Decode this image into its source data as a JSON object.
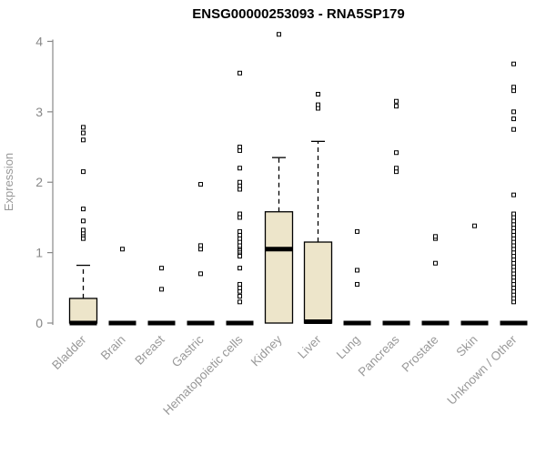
{
  "chart_data": {
    "type": "boxplot",
    "title": "ENSG00000253093 - RNA5SP179",
    "ylabel": "Expression",
    "ylim": [
      0,
      4.2
    ],
    "yticks": [
      0,
      1,
      2,
      3,
      4
    ],
    "grid": false,
    "legend": false,
    "box_fill": "#EDE5CA",
    "box_stroke": "#000000",
    "median_color": "#000000",
    "axis_color": "#888888",
    "label_color": "#999999",
    "title_color": "#000000",
    "outlier_marker": "open-square",
    "categories": [
      "Bladder",
      "Brain",
      "Breast",
      "Gastric",
      "Hematopoietic cells",
      "Kidney",
      "Liver",
      "Lung",
      "Pancreas",
      "Prostate",
      "Skin",
      "Unknown / Other"
    ],
    "boxes": [
      {
        "category": "Bladder",
        "q1": 0,
        "median": 0,
        "q3": 0.35,
        "whisker_low": 0,
        "whisker_high": 0.82,
        "outliers": [
          1.2,
          1.25,
          1.28,
          1.32,
          1.45,
          1.62,
          2.15,
          2.6,
          2.7,
          2.78
        ]
      },
      {
        "category": "Brain",
        "q1": 0,
        "median": 0,
        "q3": 0,
        "whisker_low": 0,
        "whisker_high": 0,
        "outliers": [
          1.05
        ]
      },
      {
        "category": "Breast",
        "q1": 0,
        "median": 0,
        "q3": 0,
        "whisker_low": 0,
        "whisker_high": 0,
        "outliers": [
          0.48,
          0.78
        ]
      },
      {
        "category": "Gastric",
        "q1": 0,
        "median": 0,
        "q3": 0,
        "whisker_low": 0,
        "whisker_high": 0,
        "outliers": [
          0.7,
          1.05,
          1.1,
          1.97
        ]
      },
      {
        "category": "Hematopoietic cells",
        "q1": 0,
        "median": 0,
        "q3": 0,
        "whisker_low": 0,
        "whisker_high": 0,
        "outliers": [
          0.3,
          0.38,
          0.45,
          0.5,
          0.55,
          0.78,
          0.95,
          1.0,
          1.02,
          1.05,
          1.08,
          1.1,
          1.15,
          1.2,
          1.25,
          1.3,
          1.5,
          1.55,
          1.9,
          1.95,
          2.0,
          2.2,
          2.45,
          2.5,
          3.55
        ]
      },
      {
        "category": "Kidney",
        "q1": 0,
        "median": 1.05,
        "q3": 1.58,
        "whisker_low": 0,
        "whisker_high": 2.35,
        "outliers": [
          4.1
        ]
      },
      {
        "category": "Liver",
        "q1": 0,
        "median": 0.02,
        "q3": 1.15,
        "whisker_low": 0,
        "whisker_high": 2.58,
        "outliers": [
          3.05,
          3.1,
          3.25
        ]
      },
      {
        "category": "Lung",
        "q1": 0,
        "median": 0,
        "q3": 0,
        "whisker_low": 0,
        "whisker_high": 0,
        "outliers": [
          0.55,
          0.75,
          1.3
        ]
      },
      {
        "category": "Pancreas",
        "q1": 0,
        "median": 0,
        "q3": 0,
        "whisker_low": 0,
        "whisker_high": 0,
        "outliers": [
          2.15,
          2.2,
          2.42,
          3.08,
          3.15
        ]
      },
      {
        "category": "Prostate",
        "q1": 0,
        "median": 0,
        "q3": 0,
        "whisker_low": 0,
        "whisker_high": 0,
        "outliers": [
          0.85,
          1.2,
          1.23
        ]
      },
      {
        "category": "Skin",
        "q1": 0,
        "median": 0,
        "q3": 0,
        "whisker_low": 0,
        "whisker_high": 0,
        "outliers": [
          1.38
        ]
      },
      {
        "category": "Unknown / Other",
        "q1": 0,
        "median": 0,
        "q3": 0,
        "whisker_low": 0,
        "whisker_high": 0,
        "outliers": [
          0.3,
          0.35,
          0.4,
          0.45,
          0.5,
          0.55,
          0.6,
          0.65,
          0.7,
          0.75,
          0.8,
          0.85,
          0.9,
          0.95,
          1.0,
          1.05,
          1.1,
          1.15,
          1.2,
          1.25,
          1.3,
          1.35,
          1.4,
          1.45,
          1.5,
          1.55,
          1.82,
          2.75,
          2.9,
          3.0,
          3.3,
          3.35,
          3.68
        ]
      }
    ]
  }
}
